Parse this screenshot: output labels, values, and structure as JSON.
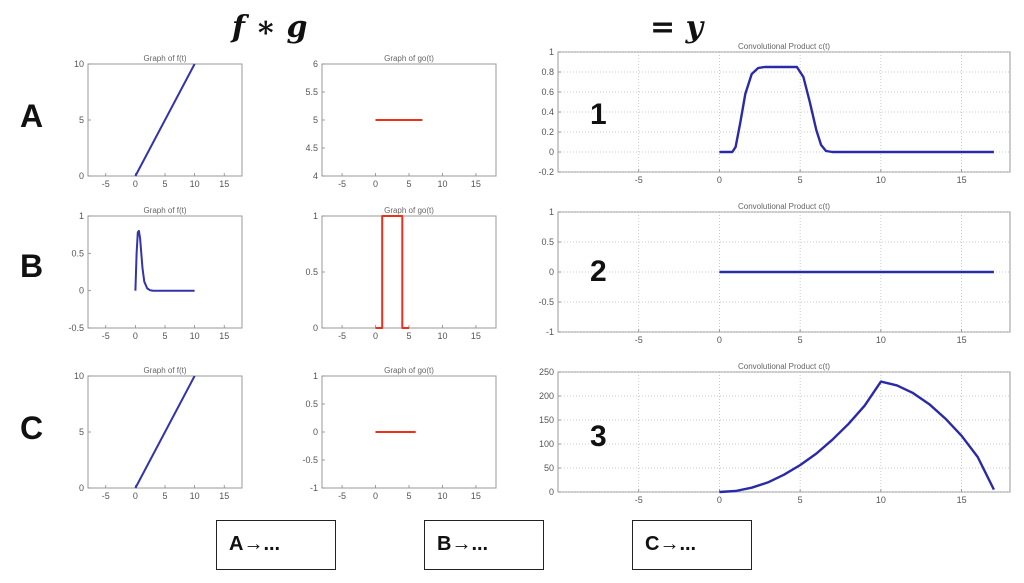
{
  "header": {
    "fg": "f ∗ g",
    "y": "= y"
  },
  "row_labels": [
    "A",
    "B",
    "C"
  ],
  "result_labels": [
    "1",
    "2",
    "3"
  ],
  "answers": [
    "A→...",
    "B→...",
    "C→..."
  ],
  "colors": {
    "f_line": "#3333aa",
    "g_line": "#e8321e",
    "conv_line": "#2a2aa8"
  },
  "chart_data": [
    {
      "id": "fA",
      "type": "line",
      "title": "Graph of f(t)",
      "xlim": [
        -8,
        18
      ],
      "ylim": [
        0,
        10
      ],
      "xticks": [
        -5,
        0,
        5,
        10,
        15
      ],
      "yticks": [
        0,
        5,
        10
      ],
      "grid": false,
      "color": "#3333aa",
      "series": [
        {
          "x": [
            0,
            10
          ],
          "y": [
            0,
            10
          ]
        }
      ]
    },
    {
      "id": "gA",
      "type": "line",
      "title": "Graph of go(t)",
      "xlim": [
        -8,
        18
      ],
      "ylim": [
        4,
        6
      ],
      "xticks": [
        -5,
        0,
        5,
        10,
        15
      ],
      "yticks": [
        4,
        4.5,
        5,
        5.5,
        6
      ],
      "grid": false,
      "color": "#e8321e",
      "series": [
        {
          "x": [
            0,
            7
          ],
          "y": [
            5,
            5
          ]
        }
      ]
    },
    {
      "id": "fB",
      "type": "line",
      "title": "Graph of f(t)",
      "xlim": [
        -8,
        18
      ],
      "ylim": [
        -0.5,
        1
      ],
      "xticks": [
        -5,
        0,
        5,
        10,
        15
      ],
      "yticks": [
        -0.5,
        0,
        0.5,
        1
      ],
      "grid": false,
      "color": "#3333aa",
      "series": [
        {
          "x": [
            0,
            0.2,
            0.4,
            0.6,
            0.8,
            1.0,
            1.2,
            1.5,
            2.0,
            2.5,
            3.0,
            4,
            6,
            8,
            10
          ],
          "y": [
            0,
            0.5,
            0.78,
            0.8,
            0.7,
            0.5,
            0.3,
            0.12,
            0.03,
            0.005,
            0,
            0,
            0,
            0,
            0
          ]
        }
      ]
    },
    {
      "id": "gB",
      "type": "line",
      "title": "Graph of go(t)",
      "xlim": [
        -8,
        18
      ],
      "ylim": [
        0,
        1
      ],
      "xticks": [
        -5,
        0,
        5,
        10,
        15
      ],
      "yticks": [
        0,
        0.5,
        1
      ],
      "grid": false,
      "color": "#e8321e",
      "series": [
        {
          "x": [
            0,
            1,
            1,
            4,
            4,
            5
          ],
          "y": [
            0,
            0,
            1,
            1,
            0,
            0
          ]
        }
      ]
    },
    {
      "id": "fC",
      "type": "line",
      "title": "Graph of f(t)",
      "xlim": [
        -8,
        18
      ],
      "ylim": [
        0,
        10
      ],
      "xticks": [
        -5,
        0,
        5,
        10,
        15
      ],
      "yticks": [
        0,
        5,
        10
      ],
      "grid": false,
      "color": "#3333aa",
      "series": [
        {
          "x": [
            0,
            10
          ],
          "y": [
            0,
            10
          ]
        }
      ]
    },
    {
      "id": "gC",
      "type": "line",
      "title": "Graph of go(t)",
      "xlim": [
        -8,
        18
      ],
      "ylim": [
        -1,
        1
      ],
      "xticks": [
        -5,
        0,
        5,
        10,
        15
      ],
      "yticks": [
        -1,
        -0.5,
        0,
        0.5,
        1
      ],
      "grid": false,
      "color": "#e8321e",
      "series": [
        {
          "x": [
            0,
            6
          ],
          "y": [
            0,
            0
          ]
        }
      ]
    },
    {
      "id": "c1",
      "type": "line",
      "title": "Convolutional Product c(t)",
      "xlim": [
        -10,
        18
      ],
      "ylim": [
        -0.2,
        1
      ],
      "xticks": [
        -5,
        0,
        5,
        10,
        15
      ],
      "yticks": [
        -0.2,
        0,
        0.2,
        0.4,
        0.6,
        0.8,
        1
      ],
      "grid": true,
      "color": "#2a2aa8",
      "series": [
        {
          "x": [
            0,
            0.8,
            1.0,
            1.3,
            1.6,
            2.0,
            2.4,
            2.8,
            3.2,
            4,
            4.8,
            5.2,
            5.6,
            6.0,
            6.3,
            6.6,
            7,
            9,
            12,
            17
          ],
          "y": [
            0,
            0,
            0.05,
            0.3,
            0.58,
            0.78,
            0.84,
            0.85,
            0.85,
            0.85,
            0.85,
            0.75,
            0.5,
            0.22,
            0.07,
            0.01,
            0,
            0,
            0,
            0
          ]
        }
      ]
    },
    {
      "id": "c2",
      "type": "line",
      "title": "Convolutional Product c(t)",
      "xlim": [
        -10,
        18
      ],
      "ylim": [
        -1,
        1
      ],
      "xticks": [
        -5,
        0,
        5,
        10,
        15
      ],
      "yticks": [
        -1,
        -0.5,
        0,
        0.5,
        1
      ],
      "grid": true,
      "color": "#2a2aa8",
      "series": [
        {
          "x": [
            0,
            17
          ],
          "y": [
            0,
            0
          ]
        }
      ]
    },
    {
      "id": "c3",
      "type": "line",
      "title": "Convolutional Product c(t)",
      "xlim": [
        -10,
        18
      ],
      "ylim": [
        0,
        250
      ],
      "xticks": [
        -5,
        0,
        5,
        10,
        15
      ],
      "yticks": [
        0,
        50,
        100,
        150,
        200,
        250
      ],
      "grid": true,
      "color": "#2a2aa8",
      "series": [
        {
          "x": [
            0,
            1,
            2,
            3,
            4,
            5,
            6,
            7,
            8,
            9,
            10,
            11,
            12,
            13,
            14,
            15,
            16,
            17
          ],
          "y": [
            0,
            2,
            9,
            20,
            36,
            56,
            80,
            109,
            142,
            180,
            230,
            222,
            206,
            183,
            153,
            117,
            73,
            5
          ]
        }
      ]
    }
  ]
}
